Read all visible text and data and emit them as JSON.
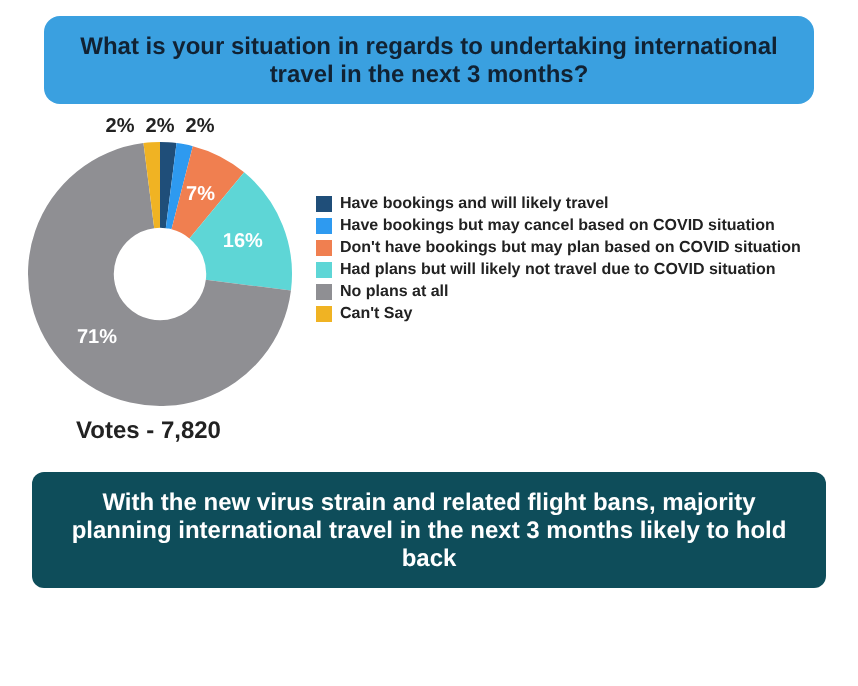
{
  "chart_data": {
    "type": "donut",
    "title": "What is your situation in regards to undertaking international travel in the next 3 months?",
    "categories": [
      "Have bookings and will likely travel",
      "Have bookings but may cancel based on COVID situation",
      "Don't have bookings but may plan based on COVID situation",
      "Had plans but will likely not travel due to COVID situation",
      "No plans at all",
      "Can't Say"
    ],
    "values": [
      2,
      2,
      7,
      16,
      71,
      2
    ],
    "colors": [
      "#1f4e79",
      "#2e9af0",
      "#f07f50",
      "#5ed6d6",
      "#8f8f93",
      "#f0b323"
    ],
    "value_labels": [
      "2%",
      "2%",
      "7%",
      "16%",
      "71%",
      "2%"
    ],
    "legend": "right",
    "annotations": [
      "Votes - 7,820",
      "With the new virus strain and related flight bans, majority planning international travel in the next 3 months likely to hold back"
    ]
  }
}
